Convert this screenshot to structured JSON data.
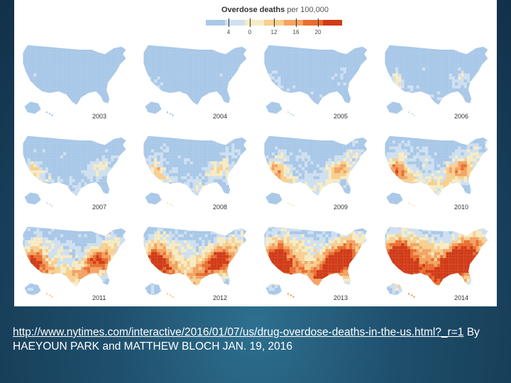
{
  "legend": {
    "title": "Overdose deaths",
    "unit": "per 100,000",
    "labels": [
      "4",
      "0",
      "12",
      "16",
      "20"
    ],
    "colors": [
      "#a9c8e8",
      "#cfe0f0",
      "#f7ecc4",
      "#f9cf8e",
      "#f4a261",
      "#ea6e2d",
      "#d23a16"
    ]
  },
  "maps": [
    {
      "year": "2003",
      "severity": 0.08
    },
    {
      "year": "2004",
      "severity": 0.13
    },
    {
      "year": "2005",
      "severity": 0.18
    },
    {
      "year": "2006",
      "severity": 0.23
    },
    {
      "year": "2007",
      "severity": 0.3
    },
    {
      "year": "2008",
      "severity": 0.35
    },
    {
      "year": "2009",
      "severity": 0.42
    },
    {
      "year": "2010",
      "severity": 0.48
    },
    {
      "year": "2011",
      "severity": 0.58
    },
    {
      "year": "2012",
      "severity": 0.65
    },
    {
      "year": "2013",
      "severity": 0.73
    },
    {
      "year": "2014",
      "severity": 0.82
    }
  ],
  "caption": {
    "link_text": "http://www.nytimes.com/interactive/2016/01/07/us/drug-overdose-deaths-in-the-us.html?_r=1",
    "byline": " By HAEYOUN PARK and MATTHEW BLOCH JAN. 19, 2016"
  }
}
